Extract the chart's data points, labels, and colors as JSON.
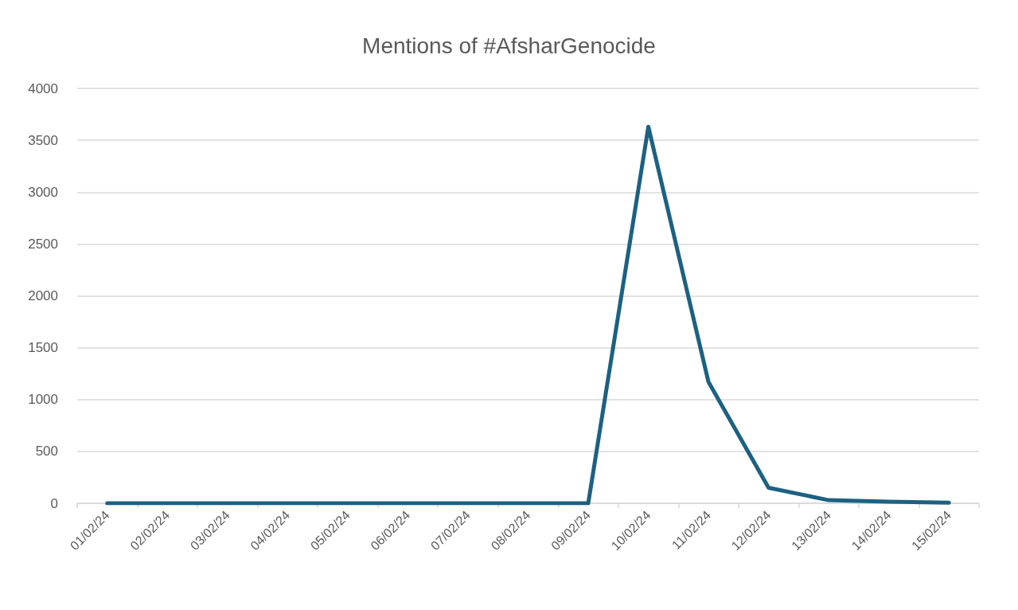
{
  "chart_data": {
    "type": "line",
    "title": "Mentions of #AfsharGenocide",
    "categories": [
      "01/02/24",
      "02/02/24",
      "03/02/24",
      "04/02/24",
      "05/02/24",
      "06/02/24",
      "07/02/24",
      "08/02/24",
      "09/02/24",
      "10/02/24",
      "11/02/24",
      "12/02/24",
      "13/02/24",
      "14/02/24",
      "15/02/24"
    ],
    "values": [
      0,
      0,
      0,
      0,
      0,
      0,
      0,
      0,
      0,
      3630,
      1170,
      150,
      30,
      15,
      5
    ],
    "color": "#1d6182",
    "ylim": [
      0,
      4000
    ],
    "yticks": [
      0,
      500,
      1000,
      1500,
      2000,
      2500,
      3000,
      3500,
      4000
    ],
    "grid": "y",
    "marker": "none",
    "line_style": "solid"
  }
}
